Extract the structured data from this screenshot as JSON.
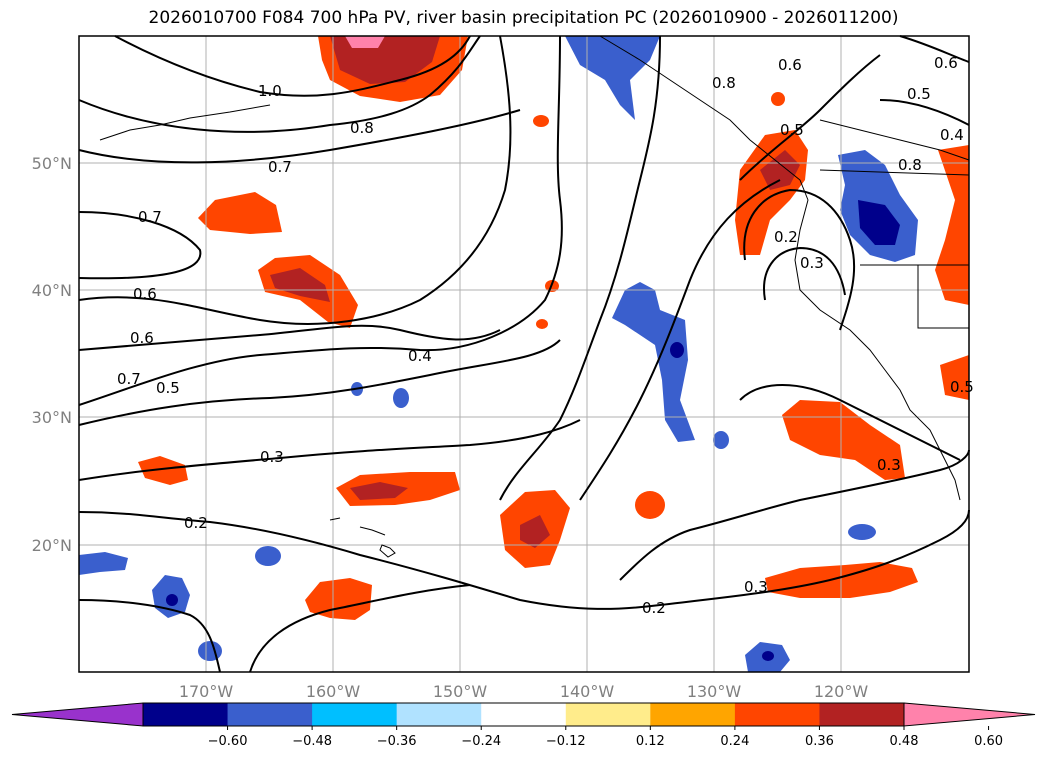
{
  "title": "2026010700 F084 700 hPa PV, river basin precipitation PC (2026010900 - 2026011200)",
  "lat_labels": [
    "50°N",
    "40°N",
    "30°N",
    "20°N"
  ],
  "lon_labels": [
    "170°W",
    "160°W",
    "150°W",
    "140°W",
    "130°W",
    "120°W"
  ],
  "colorbar": {
    "colors": [
      "#9932cc",
      "#00008b",
      "#3a5fcd",
      "#00bfff",
      "#b0e2ff",
      "#ffffff",
      "#ffec8b",
      "#ffa500",
      "#ff4500",
      "#b22222",
      "#ff82ab"
    ],
    "tick_labels": [
      "−0.60",
      "−0.48",
      "−0.36",
      "−0.24",
      "−0.12",
      "0.12",
      "0.24",
      "0.36",
      "0.48",
      "0.60"
    ]
  },
  "contour_labels": [
    "1.0",
    "0.8",
    "0.7",
    "0.7",
    "0.6",
    "0.6",
    "0.7",
    "0.5",
    "0.4",
    "0.3",
    "0.2",
    "0.2",
    "0.3",
    "0.3",
    "0.8",
    "0.6",
    "0.6",
    "0.5",
    "0.4",
    "0.5",
    "0.5",
    "0.3",
    "0.2",
    "0.8"
  ]
}
